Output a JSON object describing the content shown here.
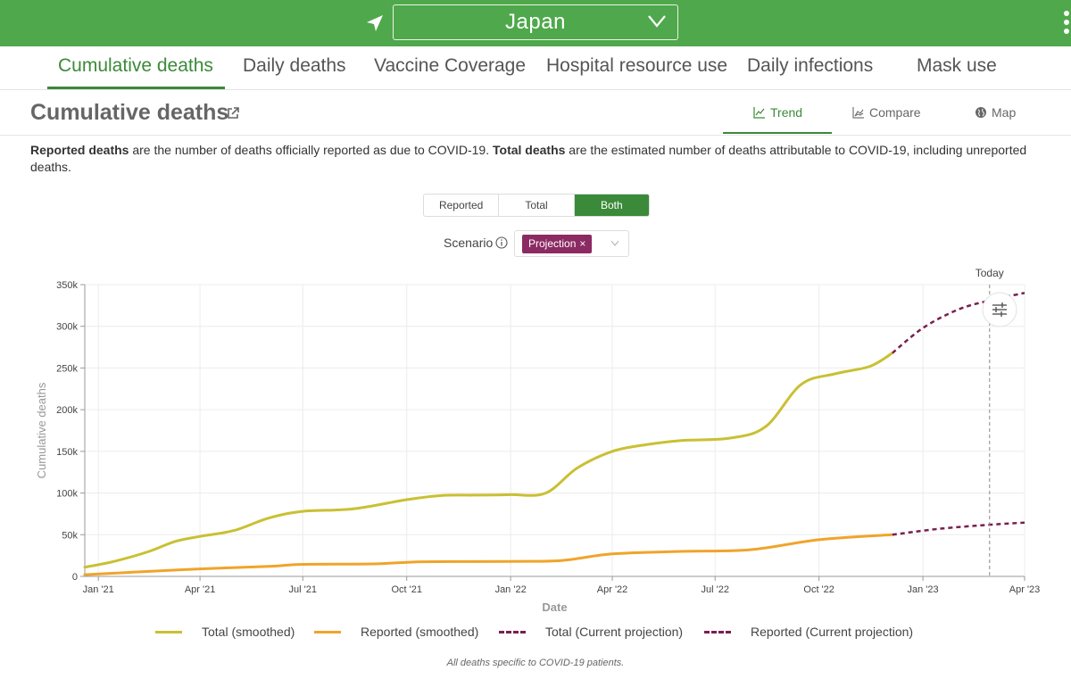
{
  "header": {
    "country": "Japan",
    "icons": {
      "location": "navigation-arrow-icon",
      "dropdown": "chevron-down-icon",
      "menu": "more-vertical-icon"
    }
  },
  "nav": {
    "tabs": [
      {
        "label": "Cumulative deaths"
      },
      {
        "label": "Daily deaths"
      },
      {
        "label": "Vaccine Coverage"
      },
      {
        "label": "Hospital resource use"
      },
      {
        "label": "Daily infections"
      },
      {
        "label": "Mask use"
      }
    ],
    "active": "Cumulative deaths"
  },
  "section": {
    "title": "Cumulative deaths",
    "view_tabs": [
      {
        "label": "Trend",
        "icon": "line-chart-icon"
      },
      {
        "label": "Compare",
        "icon": "area-chart-icon"
      },
      {
        "label": "Map",
        "icon": "globe-icon"
      }
    ],
    "active_view": "Trend"
  },
  "description": {
    "term1": "Reported deaths",
    "text1": " are the number of deaths officially reported as due to COVID-19. ",
    "term2": "Total deaths",
    "text2": " are the estimated number of deaths attributable to COVID-19, including unreported deaths."
  },
  "toggle": {
    "options": [
      "Reported",
      "Total",
      "Both"
    ],
    "selected": "Both"
  },
  "scenario": {
    "label": "Scenario",
    "chip": "Projection",
    "chip_close": "×"
  },
  "colors": {
    "green": "#4fa84b",
    "accent": "#3b8a39",
    "total": "#c9c033",
    "reported": "#f0a42a",
    "projection": "#7a1f4f"
  },
  "chart_data": {
    "type": "line",
    "xlabel": "Date",
    "ylabel": "Cumulative deaths",
    "x_ticks": [
      "Jan '21",
      "Apr '21",
      "Jul '21",
      "Oct '21",
      "Jan '22",
      "Apr '22",
      "Jul '22",
      "Oct '22",
      "Jan '23",
      "Apr '23"
    ],
    "y_ticks": [
      "0",
      "50k",
      "100k",
      "150k",
      "200k",
      "250k",
      "300k",
      "350k"
    ],
    "ylim": [
      0,
      350000
    ],
    "xlim": [
      "2020-12-20",
      "2023-04-01"
    ],
    "grid": true,
    "today_label": "Today",
    "today_date": "2023-03-01",
    "series": [
      {
        "name": "Total (smoothed)",
        "style": "solid",
        "color": "#c9c033",
        "points": [
          [
            "2020-12-20",
            11000
          ],
          [
            "2021-01-15",
            18000
          ],
          [
            "2021-02-15",
            30000
          ],
          [
            "2021-03-10",
            42000
          ],
          [
            "2021-04-01",
            48000
          ],
          [
            "2021-05-01",
            55000
          ],
          [
            "2021-06-01",
            70000
          ],
          [
            "2021-07-01",
            78000
          ],
          [
            "2021-08-15",
            81000
          ],
          [
            "2021-10-01",
            92000
          ],
          [
            "2021-11-01",
            97000
          ],
          [
            "2021-12-01",
            97500
          ],
          [
            "2022-01-01",
            98000
          ],
          [
            "2022-02-01",
            100000
          ],
          [
            "2022-03-01",
            130000
          ],
          [
            "2022-04-01",
            150000
          ],
          [
            "2022-05-01",
            158000
          ],
          [
            "2022-06-01",
            163000
          ],
          [
            "2022-07-15",
            166000
          ],
          [
            "2022-08-15",
            180000
          ],
          [
            "2022-09-15",
            230000
          ],
          [
            "2022-10-15",
            243000
          ],
          [
            "2022-11-15",
            252000
          ],
          [
            "2022-12-05",
            268000
          ]
        ]
      },
      {
        "name": "Reported (smoothed)",
        "style": "solid",
        "color": "#f0a42a",
        "points": [
          [
            "2020-12-20",
            2000
          ],
          [
            "2021-02-01",
            5000
          ],
          [
            "2021-04-01",
            9000
          ],
          [
            "2021-06-01",
            12000
          ],
          [
            "2021-07-01",
            14500
          ],
          [
            "2021-09-01",
            15000
          ],
          [
            "2021-10-15",
            17500
          ],
          [
            "2022-01-01",
            18000
          ],
          [
            "2022-02-15",
            19000
          ],
          [
            "2022-04-01",
            27000
          ],
          [
            "2022-06-01",
            30000
          ],
          [
            "2022-08-01",
            32000
          ],
          [
            "2022-10-01",
            44000
          ],
          [
            "2022-12-05",
            50000
          ]
        ]
      },
      {
        "name": "Total (Current projection)",
        "style": "dashed",
        "color": "#7a1f4f",
        "points": [
          [
            "2022-12-05",
            268000
          ],
          [
            "2023-01-01",
            298000
          ],
          [
            "2023-02-01",
            320000
          ],
          [
            "2023-03-01",
            331000
          ],
          [
            "2023-04-01",
            340000
          ]
        ]
      },
      {
        "name": "Reported (Current projection)",
        "style": "dashed",
        "color": "#7a1f4f",
        "points": [
          [
            "2022-12-05",
            50000
          ],
          [
            "2023-01-15",
            57000
          ],
          [
            "2023-03-01",
            62000
          ],
          [
            "2023-04-01",
            64500
          ]
        ]
      }
    ]
  },
  "footnote": "All deaths specific to COVID-19 patients."
}
